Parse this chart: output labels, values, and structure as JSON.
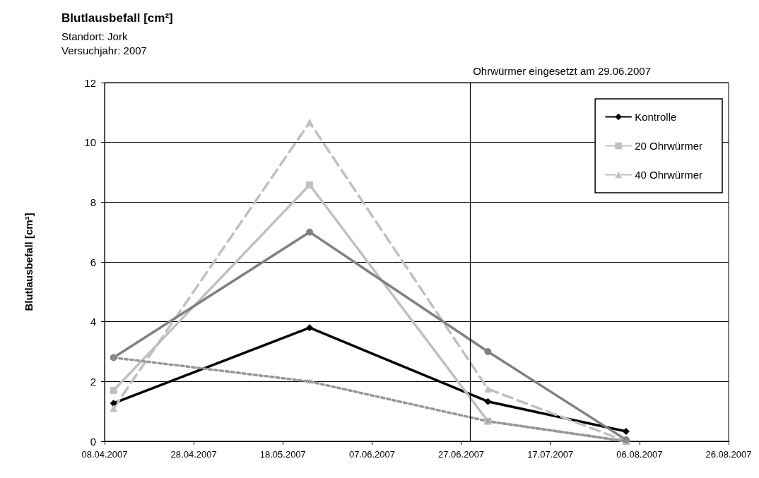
{
  "chart_data": {
    "type": "line",
    "title": "Blutlausbefall [cm²]",
    "subtitle": "Standort: Jork",
    "annotations": [
      "Versuchjahr: 2007"
    ],
    "ylabel": "Blutlausbefall [cm²]",
    "x": [
      "2007-04-10",
      "2007-05-24",
      "2007-07-03",
      "2007-08-03"
    ],
    "series": [
      {
        "name": "Kontrolle",
        "color": "#000000",
        "values": [
          1.27,
          3.8,
          1.33,
          0.33
        ],
        "marker": "diamond",
        "line_style": "solid"
      },
      {
        "name": "20 Ohrwürmer",
        "color": "#c0c0c0",
        "values": [
          1.7,
          8.58,
          0.67,
          0
        ],
        "marker": "square",
        "line_style": "solid"
      },
      {
        "name": "40 Ohrwürmer",
        "color": "#c0c0c0",
        "values": [
          1.1,
          10.67,
          1.75,
          0
        ],
        "marker": "triangle",
        "line_style": "dashed"
      },
      {
        "color": "#808080",
        "values": [
          2.8,
          7.0,
          3.0,
          0.05
        ],
        "marker": "circle",
        "line_style": "solid"
      },
      {
        "color": "#969696",
        "values": [
          2.8,
          2.0,
          0.67,
          0
        ],
        "marker": "cross",
        "line_style": "dotted"
      }
    ],
    "xlim": [
      "2007-04-08",
      "2007-08-26"
    ],
    "xticks": [
      {
        "value": "2007-04-08",
        "label": "08.04.2007"
      },
      {
        "value": "2007-04-28",
        "label": "28.04.2007"
      },
      {
        "value": "2007-05-18",
        "label": "18.05.2007"
      },
      {
        "value": "2007-06-07",
        "label": "07.06.2007"
      },
      {
        "value": "2007-06-27",
        "label": "27.06.2007"
      },
      {
        "value": "2007-07-17",
        "label": "17.07.2007"
      },
      {
        "value": "2007-08-06",
        "label": "06.08.2007"
      },
      {
        "value": "2007-08-26",
        "label": "26.08.2007"
      }
    ],
    "ylim": [
      0,
      12
    ],
    "yticks": [
      0,
      2,
      4,
      6,
      8,
      10,
      12
    ],
    "ref_lines": [
      {
        "axis": "x",
        "value": "2007-06-29",
        "label": "Ohrwürmer eingesetzt am 29.06.2007",
        "color": "#000000"
      }
    ],
    "grid": "y",
    "legend": "top right"
  }
}
